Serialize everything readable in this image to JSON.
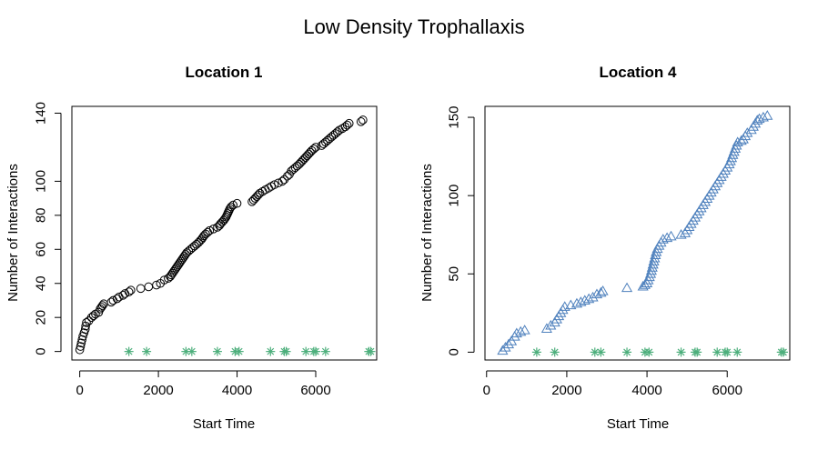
{
  "figure": {
    "title": "Low Density Trophallaxis"
  },
  "chart_data": [
    {
      "type": "scatter",
      "title": "Location 1",
      "xlabel": "Start Time",
      "ylabel": "Number of Interactions",
      "xlim": [
        -200,
        7550
      ],
      "ylim": [
        -5,
        144
      ],
      "xticks": [
        0,
        2000,
        4000,
        6000
      ],
      "yticks": [
        0,
        20,
        40,
        60,
        80,
        100,
        140
      ],
      "grid": false,
      "marker": "circle",
      "color": "#000000",
      "interaction_series": [
        [
          0,
          1
        ],
        [
          20,
          3
        ],
        [
          40,
          5
        ],
        [
          60,
          7
        ],
        [
          80,
          9
        ],
        [
          110,
          11
        ],
        [
          140,
          13
        ],
        [
          150,
          15
        ],
        [
          170,
          17
        ],
        [
          230,
          18
        ],
        [
          300,
          20
        ],
        [
          350,
          21
        ],
        [
          400,
          22
        ],
        [
          480,
          23
        ],
        [
          520,
          25
        ],
        [
          550,
          26
        ],
        [
          580,
          27
        ],
        [
          610,
          28
        ],
        [
          800,
          29
        ],
        [
          850,
          30
        ],
        [
          950,
          31
        ],
        [
          1000,
          32
        ],
        [
          1100,
          33
        ],
        [
          1150,
          34
        ],
        [
          1250,
          35
        ],
        [
          1300,
          36
        ],
        [
          1550,
          37
        ],
        [
          1750,
          38
        ],
        [
          1950,
          39
        ],
        [
          2050,
          40
        ],
        [
          2150,
          42
        ],
        [
          2250,
          43
        ],
        [
          2300,
          44
        ],
        [
          2330,
          45
        ],
        [
          2360,
          46
        ],
        [
          2390,
          47
        ],
        [
          2420,
          48
        ],
        [
          2450,
          49
        ],
        [
          2480,
          50
        ],
        [
          2510,
          51
        ],
        [
          2540,
          52
        ],
        [
          2570,
          53
        ],
        [
          2600,
          54
        ],
        [
          2630,
          55
        ],
        [
          2660,
          56
        ],
        [
          2690,
          57
        ],
        [
          2720,
          58
        ],
        [
          2770,
          59
        ],
        [
          2820,
          60
        ],
        [
          2870,
          61
        ],
        [
          2920,
          62
        ],
        [
          2970,
          63
        ],
        [
          3020,
          64
        ],
        [
          3060,
          65
        ],
        [
          3100,
          66
        ],
        [
          3130,
          67
        ],
        [
          3160,
          68
        ],
        [
          3200,
          69
        ],
        [
          3250,
          70
        ],
        [
          3300,
          71
        ],
        [
          3400,
          72
        ],
        [
          3500,
          73
        ],
        [
          3550,
          74
        ],
        [
          3580,
          75
        ],
        [
          3620,
          76
        ],
        [
          3660,
          77
        ],
        [
          3690,
          78
        ],
        [
          3720,
          79
        ],
        [
          3740,
          80
        ],
        [
          3760,
          81
        ],
        [
          3780,
          82
        ],
        [
          3800,
          83
        ],
        [
          3820,
          84
        ],
        [
          3850,
          85
        ],
        [
          3900,
          86
        ],
        [
          4000,
          87
        ],
        [
          4380,
          88
        ],
        [
          4420,
          89
        ],
        [
          4460,
          90
        ],
        [
          4500,
          91
        ],
        [
          4540,
          92
        ],
        [
          4580,
          93
        ],
        [
          4650,
          94
        ],
        [
          4720,
          95
        ],
        [
          4800,
          96
        ],
        [
          4870,
          97
        ],
        [
          4950,
          98
        ],
        [
          5050,
          99
        ],
        [
          5150,
          100
        ],
        [
          5200,
          101
        ],
        [
          5280,
          103
        ],
        [
          5330,
          104
        ],
        [
          5380,
          106
        ],
        [
          5430,
          107
        ],
        [
          5480,
          108
        ],
        [
          5530,
          109
        ],
        [
          5580,
          110
        ],
        [
          5620,
          111
        ],
        [
          5660,
          112
        ],
        [
          5700,
          113
        ],
        [
          5740,
          114
        ],
        [
          5780,
          115
        ],
        [
          5820,
          116
        ],
        [
          5860,
          117
        ],
        [
          5900,
          118
        ],
        [
          5950,
          119
        ],
        [
          6000,
          120
        ],
        [
          6150,
          121
        ],
        [
          6200,
          122
        ],
        [
          6250,
          123
        ],
        [
          6300,
          124
        ],
        [
          6350,
          125
        ],
        [
          6400,
          126
        ],
        [
          6450,
          127
        ],
        [
          6500,
          128
        ],
        [
          6550,
          129
        ],
        [
          6600,
          130
        ],
        [
          6680,
          131
        ],
        [
          6750,
          132
        ],
        [
          6800,
          133
        ],
        [
          6850,
          134
        ],
        [
          7150,
          135
        ],
        [
          7200,
          136
        ]
      ],
      "baseline_events": {
        "marker": "asterisk",
        "color": "#4daf7c",
        "x": [
          1250,
          1700,
          2700,
          2850,
          3500,
          3950,
          4050,
          4850,
          5200,
          5250,
          5750,
          5950,
          6000,
          6250,
          7350,
          7400
        ],
        "y": 0
      }
    },
    {
      "type": "scatter",
      "title": "Location 4",
      "xlabel": "Start Time",
      "ylabel": "Number of Interactions",
      "xlim": [
        -40,
        7560
      ],
      "ylim": [
        -5,
        157
      ],
      "xticks": [
        0,
        2000,
        4000,
        6000
      ],
      "yticks": [
        0,
        50,
        100,
        150
      ],
      "grid": false,
      "marker": "triangle",
      "color": "#4f81bd",
      "interaction_series": [
        [
          400,
          1
        ],
        [
          470,
          3
        ],
        [
          550,
          5
        ],
        [
          620,
          7
        ],
        [
          700,
          10
        ],
        [
          750,
          12
        ],
        [
          850,
          13
        ],
        [
          950,
          14
        ],
        [
          1500,
          15
        ],
        [
          1600,
          17
        ],
        [
          1700,
          19
        ],
        [
          1750,
          21
        ],
        [
          1800,
          23
        ],
        [
          1850,
          25
        ],
        [
          1900,
          27
        ],
        [
          1950,
          29
        ],
        [
          2100,
          30
        ],
        [
          2250,
          31
        ],
        [
          2350,
          32
        ],
        [
          2450,
          33
        ],
        [
          2550,
          34
        ],
        [
          2650,
          35
        ],
        [
          2750,
          37
        ],
        [
          2850,
          38
        ],
        [
          2900,
          39
        ],
        [
          3500,
          41
        ],
        [
          3900,
          42
        ],
        [
          3950,
          43
        ],
        [
          4000,
          44
        ],
        [
          4030,
          46
        ],
        [
          4060,
          48
        ],
        [
          4090,
          50
        ],
        [
          4110,
          52
        ],
        [
          4130,
          54
        ],
        [
          4150,
          56
        ],
        [
          4170,
          58
        ],
        [
          4190,
          60
        ],
        [
          4210,
          62
        ],
        [
          4230,
          64
        ],
        [
          4260,
          66
        ],
        [
          4300,
          68
        ],
        [
          4350,
          70
        ],
        [
          4400,
          72
        ],
        [
          4500,
          73
        ],
        [
          4600,
          74
        ],
        [
          4850,
          75
        ],
        [
          4950,
          76
        ],
        [
          5000,
          78
        ],
        [
          5050,
          80
        ],
        [
          5100,
          82
        ],
        [
          5150,
          84
        ],
        [
          5200,
          86
        ],
        [
          5250,
          88
        ],
        [
          5300,
          90
        ],
        [
          5350,
          92
        ],
        [
          5400,
          94
        ],
        [
          5450,
          96
        ],
        [
          5500,
          98
        ],
        [
          5550,
          100
        ],
        [
          5600,
          102
        ],
        [
          5650,
          104
        ],
        [
          5700,
          106
        ],
        [
          5750,
          108
        ],
        [
          5800,
          110
        ],
        [
          5850,
          112
        ],
        [
          5900,
          114
        ],
        [
          5950,
          116
        ],
        [
          6000,
          118
        ],
        [
          6050,
          120
        ],
        [
          6080,
          122
        ],
        [
          6110,
          124
        ],
        [
          6140,
          126
        ],
        [
          6170,
          128
        ],
        [
          6200,
          130
        ],
        [
          6230,
          132
        ],
        [
          6260,
          134
        ],
        [
          6350,
          135
        ],
        [
          6400,
          136
        ],
        [
          6450,
          138
        ],
        [
          6500,
          140
        ],
        [
          6600,
          142
        ],
        [
          6650,
          144
        ],
        [
          6700,
          146
        ],
        [
          6750,
          148
        ],
        [
          6800,
          149
        ],
        [
          6900,
          150
        ],
        [
          7000,
          151
        ]
      ],
      "baseline_events": {
        "marker": "asterisk",
        "color": "#4daf7c",
        "x": [
          1250,
          1700,
          2700,
          2850,
          3500,
          3950,
          4050,
          4850,
          5200,
          5250,
          5750,
          5950,
          6000,
          6250,
          7350,
          7400
        ],
        "y": 0
      }
    }
  ]
}
